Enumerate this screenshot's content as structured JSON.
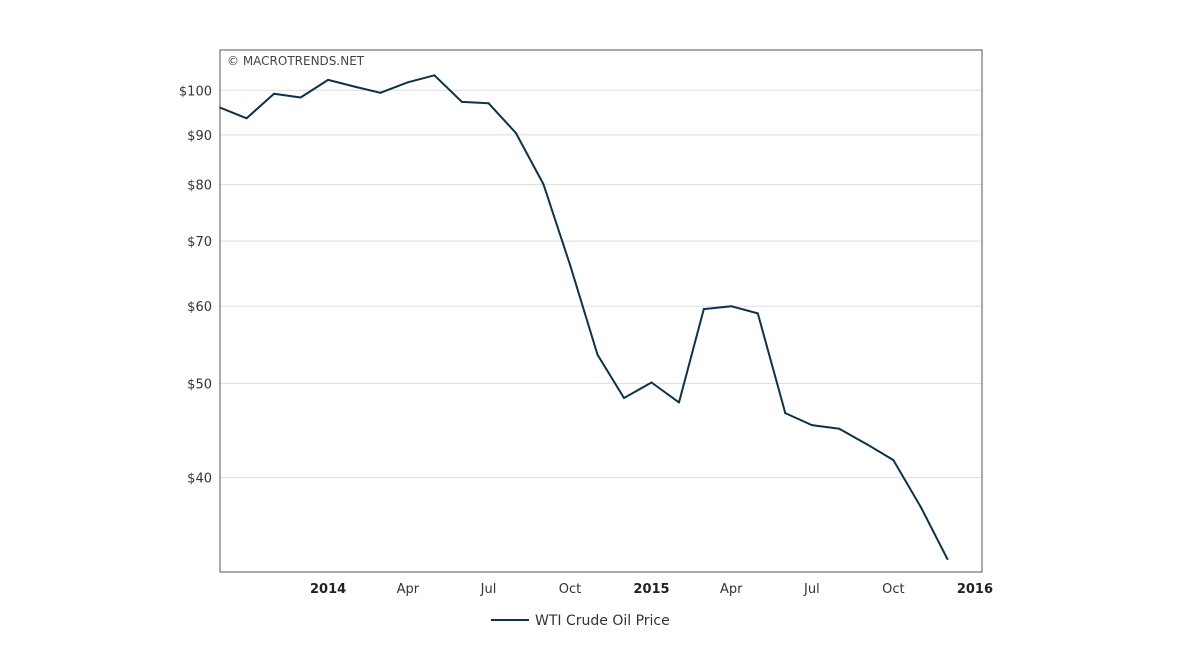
{
  "watermark": "© MACROTRENDS.NET",
  "colors": {
    "series": "#0d3349",
    "grid": "#dddddd",
    "frame": "#555555"
  },
  "chart_data": {
    "type": "line",
    "title": "",
    "xlabel": "",
    "ylabel": "",
    "y_scale": "log",
    "ylim": [
      32,
      110
    ],
    "xlim": [
      "2013-09-01",
      "2016-01-09"
    ],
    "grid": true,
    "legend_position": "bottom-center",
    "y_ticks": [
      {
        "value": 40,
        "label": "$40"
      },
      {
        "value": 50,
        "label": "$50"
      },
      {
        "value": 60,
        "label": "$60"
      },
      {
        "value": 70,
        "label": "$70"
      },
      {
        "value": 80,
        "label": "$80"
      },
      {
        "value": 90,
        "label": "$90"
      },
      {
        "value": 100,
        "label": "$100"
      }
    ],
    "x_ticks": [
      {
        "date": "2014-01-01",
        "label": "2014",
        "major": true
      },
      {
        "date": "2014-04-01",
        "label": "Apr",
        "major": false
      },
      {
        "date": "2014-07-01",
        "label": "Jul",
        "major": false
      },
      {
        "date": "2014-10-01",
        "label": "Oct",
        "major": false
      },
      {
        "date": "2015-01-01",
        "label": "2015",
        "major": true
      },
      {
        "date": "2015-04-01",
        "label": "Apr",
        "major": false
      },
      {
        "date": "2015-07-01",
        "label": "Jul",
        "major": false
      },
      {
        "date": "2015-10-01",
        "label": "Oct",
        "major": false
      },
      {
        "date": "2016-01-01",
        "label": "2016",
        "major": true
      }
    ],
    "series": [
      {
        "name": "WTI Crude Oil Price",
        "points": [
          {
            "x": "2013-09-01",
            "y": 96.0
          },
          {
            "x": "2013-10-01",
            "y": 93.6
          },
          {
            "x": "2013-11-01",
            "y": 99.2
          },
          {
            "x": "2013-12-01",
            "y": 98.3
          },
          {
            "x": "2014-01-01",
            "y": 102.5
          },
          {
            "x": "2014-02-01",
            "y": 100.8
          },
          {
            "x": "2014-03-01",
            "y": 99.4
          },
          {
            "x": "2014-04-01",
            "y": 101.9
          },
          {
            "x": "2014-05-01",
            "y": 103.6
          },
          {
            "x": "2014-06-01",
            "y": 97.3
          },
          {
            "x": "2014-07-01",
            "y": 97.0
          },
          {
            "x": "2014-08-01",
            "y": 90.4
          },
          {
            "x": "2014-09-01",
            "y": 80.1
          },
          {
            "x": "2014-10-01",
            "y": 66.2
          },
          {
            "x": "2014-11-01",
            "y": 53.5
          },
          {
            "x": "2014-12-01",
            "y": 48.3
          },
          {
            "x": "2015-01-01",
            "y": 50.1
          },
          {
            "x": "2015-02-01",
            "y": 47.8
          },
          {
            "x": "2015-03-01",
            "y": 59.6
          },
          {
            "x": "2015-04-01",
            "y": 60.0
          },
          {
            "x": "2015-05-01",
            "y": 59.0
          },
          {
            "x": "2015-06-01",
            "y": 46.6
          },
          {
            "x": "2015-07-01",
            "y": 45.3
          },
          {
            "x": "2015-08-01",
            "y": 44.9
          },
          {
            "x": "2015-09-01",
            "y": 43.3
          },
          {
            "x": "2015-10-01",
            "y": 41.7
          },
          {
            "x": "2015-11-01",
            "y": 37.3
          },
          {
            "x": "2015-12-01",
            "y": 33.0
          }
        ]
      }
    ]
  }
}
